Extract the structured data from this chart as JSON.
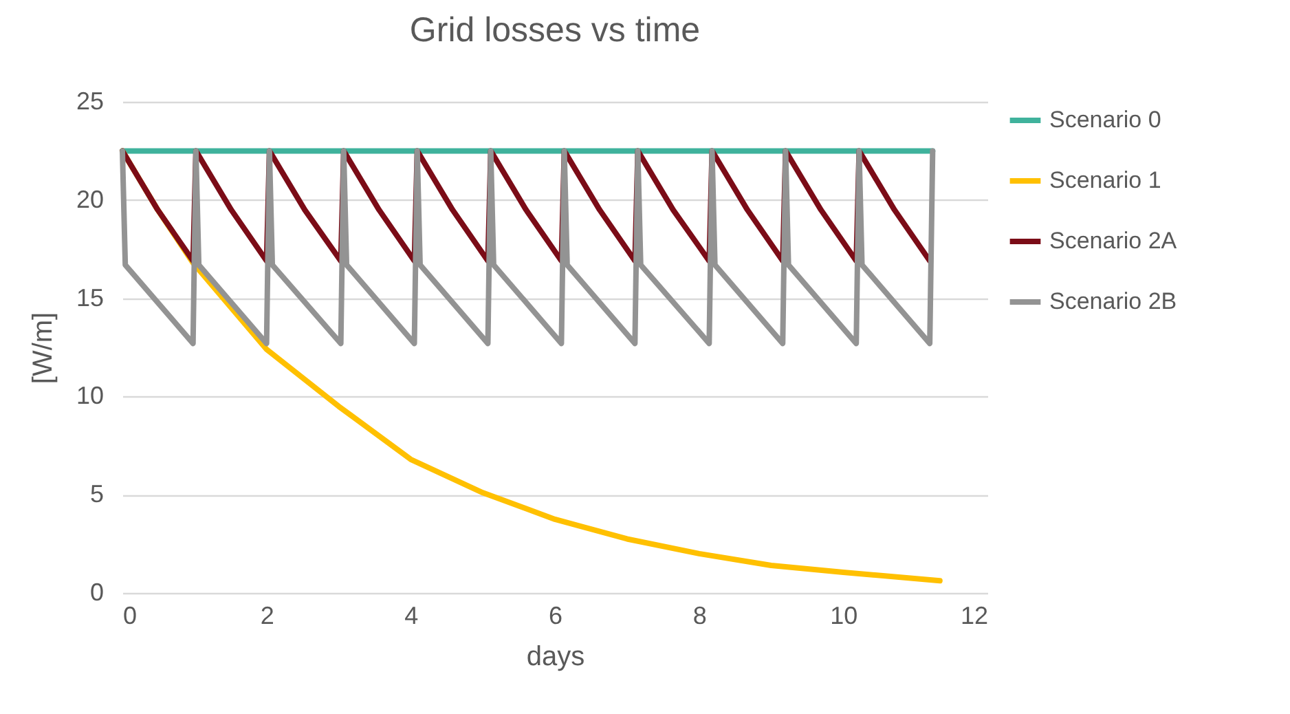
{
  "chart_data": {
    "type": "line",
    "title": "Grid losses vs time",
    "xlabel": "days",
    "ylabel": "[W/m]",
    "xlim": [
      0,
      12
    ],
    "xticks": [
      0,
      2,
      4,
      6,
      8,
      10,
      12
    ],
    "ylim": [
      0,
      25
    ],
    "yticks": [
      0,
      5,
      10,
      15,
      20,
      25
    ],
    "grid": "y",
    "legend": "right",
    "series": [
      {
        "name": "Scenario 0",
        "color": "#3fb29c",
        "x": [
          0,
          11.24
        ],
        "values": [
          22.5,
          22.5
        ]
      },
      {
        "name": "Scenario 1",
        "color": "#ffc000",
        "x": [
          0,
          0.49,
          0.98,
          2,
          3,
          4,
          5,
          6,
          7,
          8,
          9,
          10,
          11.34
        ],
        "values": [
          22.5,
          19.5,
          16.8,
          12.4,
          9.5,
          6.8,
          5.1,
          3.75,
          2.75,
          2.0,
          1.4,
          1.05,
          0.62
        ]
      },
      {
        "name": "Scenario 2A",
        "color": "#7b0c17",
        "x": [
          0,
          0.49,
          0.98,
          1.02,
          1.51,
          2.0,
          2.04,
          2.53,
          3.03,
          3.07,
          3.56,
          4.05,
          4.09,
          4.58,
          5.07,
          5.11,
          5.6,
          6.09,
          6.13,
          6.62,
          7.11,
          7.15,
          7.64,
          8.14,
          8.18,
          8.67,
          9.16,
          9.2,
          9.69,
          10.18,
          10.22,
          10.71,
          11.2
        ],
        "values": [
          22.5,
          19.5,
          16.9,
          22.5,
          19.5,
          16.9,
          22.5,
          19.5,
          16.9,
          22.5,
          19.5,
          16.9,
          22.5,
          19.5,
          16.9,
          22.5,
          19.5,
          16.9,
          22.5,
          19.5,
          16.9,
          22.5,
          19.5,
          16.9,
          22.5,
          19.5,
          16.9,
          22.5,
          19.5,
          16.9,
          22.5,
          19.5,
          16.9
        ]
      },
      {
        "name": "Scenario 2B",
        "color": "#939393",
        "x": [
          0,
          0.04,
          0.98,
          1.02,
          1.06,
          2.0,
          2.04,
          2.08,
          3.03,
          3.07,
          3.11,
          4.05,
          4.09,
          4.13,
          5.07,
          5.11,
          5.15,
          6.09,
          6.13,
          6.17,
          7.11,
          7.15,
          7.19,
          8.14,
          8.18,
          8.22,
          9.16,
          9.2,
          9.24,
          10.18,
          10.22,
          10.26,
          11.2,
          11.24
        ],
        "values": [
          22.5,
          16.7,
          12.7,
          22.5,
          16.7,
          12.7,
          22.5,
          16.7,
          12.7,
          22.5,
          16.7,
          12.7,
          22.5,
          16.7,
          12.7,
          22.5,
          16.7,
          12.7,
          22.5,
          16.7,
          12.7,
          22.5,
          16.7,
          12.7,
          22.5,
          16.7,
          12.7,
          22.5,
          16.7,
          12.7,
          22.5,
          16.7,
          12.7,
          22.5
        ]
      }
    ]
  }
}
